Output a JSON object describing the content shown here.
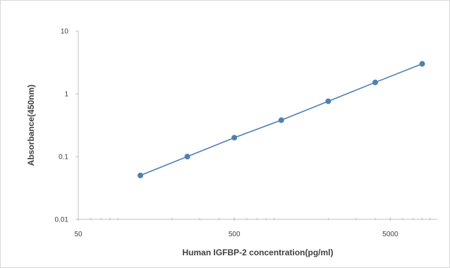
{
  "chart_data": {
    "type": "scatter",
    "title": "",
    "xlabel": "Human IGFBP-2 concentration(pg/ml)",
    "ylabel": "Absorbance(450nm)",
    "x_scale": "log",
    "y_scale": "log",
    "xlim": [
      50,
      10000
    ],
    "ylim": [
      0.01,
      10
    ],
    "x_ticks": [
      50,
      500,
      5000
    ],
    "x_tick_labels": [
      "50",
      "500",
      "5000"
    ],
    "y_ticks": [
      0.01,
      0.1,
      1,
      10
    ],
    "y_tick_labels": [
      "0.01",
      "0.1",
      "1",
      "10"
    ],
    "grid": false,
    "legend": "none",
    "series": [
      {
        "x": [
          125,
          250,
          500,
          1000,
          2000,
          4000,
          8000
        ],
        "y": [
          0.05,
          0.1,
          0.2,
          0.38,
          0.76,
          1.52,
          3.0
        ]
      }
    ],
    "colors": {
      "series": "#4f7fb5",
      "axis": "#bfbfbf",
      "text": "#404040"
    }
  }
}
